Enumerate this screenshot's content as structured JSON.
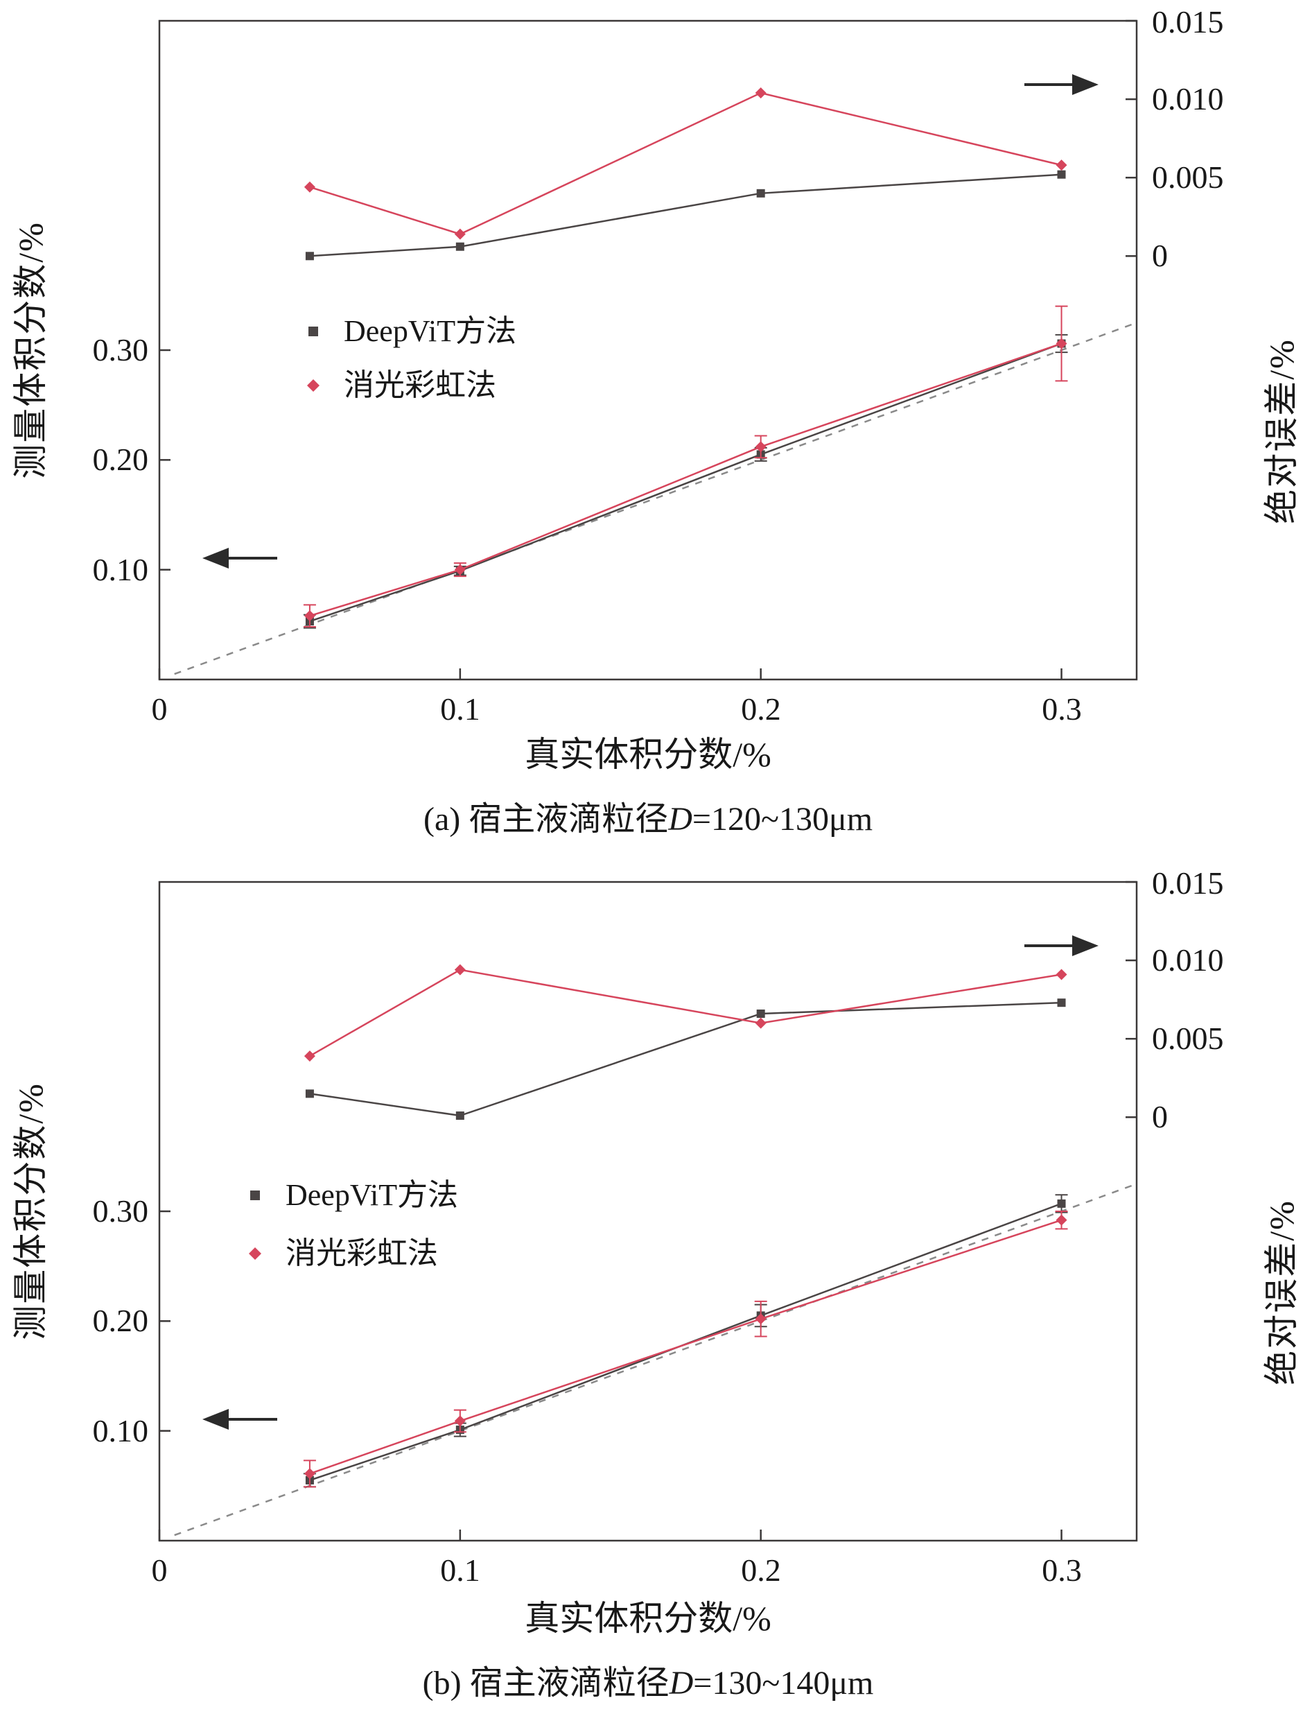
{
  "figure": {
    "background": "#ffffff",
    "frame_color": "#3b3838",
    "dashed_color": "#8a8a8a"
  },
  "chart_data": [
    {
      "type": "line",
      "panel": "a",
      "caption_prefix": "(a) 宿主液滴粒径",
      "caption_var": "D",
      "caption_suffix": "=120~130μm",
      "xlabel": "真实体积分数/%",
      "ylabel_left": "测量体积分数/%",
      "ylabel_right": "绝对误差/%",
      "xlim": [
        0,
        0.325
      ],
      "ylim_left": [
        0,
        0.6
      ],
      "ylim_right": [
        -0.027,
        0.015
      ],
      "x_ticks": {
        "values": [
          0,
          0.1,
          0.2,
          0.3
        ],
        "labels": [
          "0",
          "0.1",
          "0.2",
          "0.3"
        ]
      },
      "y_ticks_left": {
        "values": [
          0.1,
          0.2,
          0.3
        ],
        "labels": [
          "0.10",
          "0.20",
          "0.30"
        ]
      },
      "y_ticks_right": {
        "values": [
          0,
          0.005,
          0.01,
          0.015
        ],
        "labels": [
          "0",
          "0.005",
          "0.010",
          "0.015"
        ]
      },
      "identity_line": {
        "from": 0.005,
        "to": 0.325,
        "style": "dashed",
        "color": "#8a8a8a"
      },
      "legend": {
        "position": "inside-upper-left",
        "px": {
          "x": 452,
          "y1": 478,
          "y2": 556
        },
        "items": [
          {
            "label": "DeepViT方法",
            "color": "#4a4545",
            "marker": "square"
          },
          {
            "label": "消光彩虹法",
            "color": "#d6455c",
            "marker": "diamond"
          }
        ]
      },
      "x": [
        0.05,
        0.1,
        0.2,
        0.3
      ],
      "measured_series": [
        {
          "name": "DeepViT方法",
          "axis": "left",
          "color": "#4a4545",
          "marker": "square",
          "y": [
            0.053,
            0.099,
            0.205,
            0.306
          ],
          "yerr": [
            0.006,
            0.004,
            0.006,
            0.008
          ]
        },
        {
          "name": "消光彩虹法",
          "axis": "left",
          "color": "#d6455c",
          "marker": "diamond",
          "y": [
            0.058,
            0.1,
            0.212,
            0.306
          ],
          "yerr": [
            0.01,
            0.006,
            0.01,
            0.034
          ]
        }
      ],
      "error_series": [
        {
          "name": "DeepViT方法",
          "axis": "right",
          "color": "#4a4545",
          "marker": "square",
          "y": [
            0.0,
            0.0006,
            0.004,
            0.0052
          ]
        },
        {
          "name": "消光彩虹法",
          "axis": "right",
          "color": "#d6455c",
          "marker": "diamond",
          "y": [
            0.0044,
            0.0014,
            0.0104,
            0.0058
          ]
        }
      ],
      "axis_arrows": [
        {
          "direction": "right",
          "refers_to": "right-axis"
        },
        {
          "direction": "left",
          "refers_to": "left-axis"
        }
      ]
    },
    {
      "type": "line",
      "panel": "b",
      "caption_prefix": "(b) 宿主液滴粒径",
      "caption_var": "D",
      "caption_suffix": "=130~140μm",
      "xlabel": "真实体积分数/%",
      "ylabel_left": "测量体积分数/%",
      "ylabel_right": "绝对误差/%",
      "xlim": [
        0,
        0.325
      ],
      "ylim_left": [
        0,
        0.6
      ],
      "ylim_right": [
        -0.027,
        0.015
      ],
      "x_ticks": {
        "values": [
          0,
          0.1,
          0.2,
          0.3
        ],
        "labels": [
          "0",
          "0.1",
          "0.2",
          "0.3"
        ]
      },
      "y_ticks_left": {
        "values": [
          0.1,
          0.2,
          0.3
        ],
        "labels": [
          "0.10",
          "0.20",
          "0.30"
        ]
      },
      "y_ticks_right": {
        "values": [
          0,
          0.005,
          0.01,
          0.015
        ],
        "labels": [
          "0",
          "0.005",
          "0.010",
          "0.015"
        ]
      },
      "identity_line": {
        "from": 0.005,
        "to": 0.325,
        "style": "dashed",
        "color": "#8a8a8a"
      },
      "legend": {
        "position": "inside-upper-left",
        "px": {
          "x": 368,
          "y1": 482,
          "y2": 566
        },
        "items": [
          {
            "label": "DeepViT方法",
            "color": "#4a4545",
            "marker": "square"
          },
          {
            "label": "消光彩虹法",
            "color": "#d6455c",
            "marker": "diamond"
          }
        ]
      },
      "x": [
        0.05,
        0.1,
        0.2,
        0.3
      ],
      "measured_series": [
        {
          "name": "DeepViT方法",
          "axis": "left",
          "color": "#4a4545",
          "marker": "square",
          "y": [
            0.055,
            0.101,
            0.205,
            0.307
          ],
          "yerr": [
            0.006,
            0.006,
            0.01,
            0.008
          ]
        },
        {
          "name": "消光彩虹法",
          "axis": "left",
          "color": "#d6455c",
          "marker": "diamond",
          "y": [
            0.061,
            0.109,
            0.202,
            0.292
          ],
          "yerr": [
            0.012,
            0.01,
            0.016,
            0.008
          ]
        }
      ],
      "error_series": [
        {
          "name": "DeepViT方法",
          "axis": "right",
          "color": "#4a4545",
          "marker": "square",
          "y": [
            0.0015,
            0.0001,
            0.0066,
            0.0073
          ]
        },
        {
          "name": "消光彩虹法",
          "axis": "right",
          "color": "#d6455c",
          "marker": "diamond",
          "y": [
            0.0039,
            0.0094,
            0.006,
            0.0091
          ]
        }
      ],
      "axis_arrows": [
        {
          "direction": "right",
          "refers_to": "right-axis"
        },
        {
          "direction": "left",
          "refers_to": "left-axis"
        }
      ]
    }
  ]
}
